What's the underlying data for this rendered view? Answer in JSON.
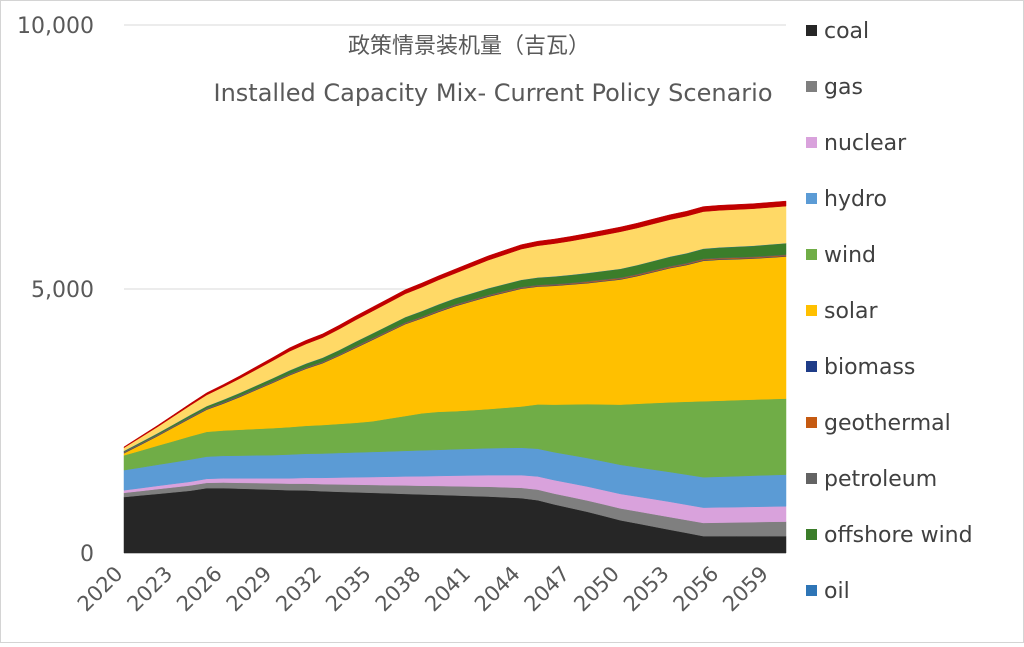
{
  "chart_data": {
    "type": "area",
    "title": "政策情景装机量（吉瓦）",
    "subtitle": "Installed Capacity Mix- Current Policy Scenario",
    "xlabel": "",
    "ylabel": "",
    "ylim": [
      0,
      10000
    ],
    "yticks": [
      "0",
      "5,000",
      "10,000"
    ],
    "grid": true,
    "legend_placement": "right",
    "x": [
      2020,
      2021,
      2022,
      2023,
      2024,
      2025,
      2026,
      2027,
      2028,
      2029,
      2030,
      2031,
      2032,
      2033,
      2034,
      2035,
      2036,
      2037,
      2038,
      2039,
      2040,
      2041,
      2042,
      2043,
      2044,
      2045,
      2046,
      2047,
      2048,
      2049,
      2050,
      2051,
      2052,
      2053,
      2054,
      2055,
      2056,
      2057,
      2058,
      2059,
      2060
    ],
    "xtick_labels": [
      "2020",
      "2023",
      "2026",
      "2029",
      "2032",
      "2035",
      "2038",
      "2041",
      "2044",
      "2047",
      "2050",
      "2053",
      "2056",
      "2059"
    ],
    "series": [
      {
        "name": "coal",
        "color": "#262626",
        "values": [
          1060,
          1090,
          1120,
          1150,
          1180,
          1230,
          1230,
          1220,
          1210,
          1200,
          1190,
          1185,
          1170,
          1160,
          1150,
          1140,
          1130,
          1120,
          1110,
          1100,
          1090,
          1080,
          1070,
          1055,
          1040,
          1000,
          920,
          850,
          780,
          700,
          620,
          560,
          500,
          440,
          380,
          320,
          320,
          320,
          320,
          320,
          320
        ]
      },
      {
        "name": "gas",
        "color": "#7f7f7f",
        "values": [
          80,
          85,
          90,
          95,
          100,
          100,
          105,
          110,
          115,
          120,
          125,
          130,
          135,
          140,
          145,
          150,
          155,
          160,
          165,
          170,
          175,
          180,
          185,
          190,
          195,
          200,
          205,
          210,
          215,
          220,
          225,
          230,
          235,
          240,
          245,
          250,
          255,
          260,
          265,
          270,
          275
        ]
      },
      {
        "name": "nuclear",
        "color": "#d9a2dc",
        "values": [
          50,
          55,
          60,
          65,
          70,
          75,
          80,
          85,
          90,
          95,
          100,
          110,
          120,
          130,
          140,
          150,
          160,
          170,
          180,
          190,
          200,
          210,
          220,
          230,
          240,
          250,
          255,
          260,
          265,
          270,
          275,
          280,
          285,
          290,
          290,
          290,
          290,
          290,
          290,
          290,
          290
        ]
      },
      {
        "name": "hydro",
        "color": "#5b9bd5",
        "values": [
          380,
          390,
          400,
          410,
          420,
          420,
          425,
          430,
          435,
          440,
          450,
          455,
          460,
          465,
          470,
          475,
          480,
          485,
          490,
          495,
          500,
          505,
          510,
          515,
          520,
          525,
          530,
          535,
          540,
          545,
          550,
          555,
          560,
          565,
          570,
          575,
          580,
          585,
          590,
          595,
          600
        ]
      },
      {
        "name": "wind",
        "color": "#70ad47",
        "values": [
          280,
          320,
          360,
          400,
          440,
          470,
          480,
          490,
          500,
          510,
          520,
          530,
          540,
          550,
          560,
          580,
          620,
          660,
          700,
          720,
          720,
          730,
          740,
          760,
          780,
          840,
          900,
          960,
          1020,
          1080,
          1140,
          1200,
          1260,
          1320,
          1380,
          1440,
          1440,
          1440,
          1440,
          1440,
          1440
        ]
      },
      {
        "name": "solar",
        "color": "#ffc000",
        "values": [
          40,
          110,
          180,
          260,
          340,
          420,
          510,
          620,
          740,
          860,
          980,
          1080,
          1170,
          1290,
          1420,
          1540,
          1640,
          1740,
          1800,
          1890,
          1990,
          2060,
          2130,
          2180,
          2230,
          2230,
          2250,
          2270,
          2290,
          2330,
          2370,
          2420,
          2480,
          2540,
          2590,
          2660,
          2670,
          2670,
          2670,
          2680,
          2690
        ]
      },
      {
        "name": "biomass",
        "color": "#1f3c88",
        "values": [
          10,
          10,
          10,
          10,
          10,
          10,
          10,
          10,
          10,
          10,
          10,
          10,
          10,
          10,
          10,
          10,
          10,
          10,
          10,
          10,
          10,
          10,
          10,
          10,
          10,
          10,
          10,
          10,
          10,
          10,
          10,
          10,
          10,
          10,
          10,
          10,
          10,
          10,
          10,
          10,
          10
        ]
      },
      {
        "name": "geothermal",
        "color": "#c55a11",
        "values": [
          5,
          5,
          5,
          5,
          5,
          5,
          5,
          5,
          5,
          5,
          5,
          5,
          5,
          5,
          10,
          10,
          10,
          10,
          10,
          10,
          10,
          10,
          10,
          10,
          10,
          10,
          10,
          10,
          15,
          15,
          15,
          15,
          15,
          15,
          15,
          15,
          15,
          15,
          15,
          15,
          15
        ]
      },
      {
        "name": "petroleum",
        "color": "#636363",
        "values": [
          15,
          15,
          15,
          15,
          15,
          15,
          15,
          15,
          15,
          15,
          15,
          15,
          15,
          15,
          15,
          15,
          15,
          15,
          15,
          15,
          15,
          15,
          15,
          15,
          15,
          15,
          15,
          15,
          15,
          15,
          15,
          15,
          15,
          15,
          15,
          15,
          15,
          15,
          15,
          15,
          15
        ]
      },
      {
        "name": "offshore wind",
        "color": "#3b7d2a",
        "values": [
          10,
          15,
          20,
          25,
          30,
          35,
          40,
          45,
          50,
          55,
          60,
          65,
          70,
          75,
          80,
          85,
          90,
          95,
          100,
          105,
          110,
          115,
          120,
          125,
          130,
          135,
          140,
          145,
          150,
          155,
          160,
          165,
          170,
          175,
          180,
          185,
          190,
          195,
          200,
          205,
          210
        ]
      },
      {
        "name": "oil",
        "color": "#2e75b6",
        "values": [
          5,
          5,
          5,
          5,
          5,
          5,
          5,
          5,
          5,
          5,
          5,
          5,
          5,
          5,
          5,
          5,
          5,
          5,
          5,
          5,
          5,
          5,
          5,
          5,
          5,
          5,
          5,
          5,
          5,
          5,
          5,
          5,
          5,
          5,
          5,
          5,
          5,
          5,
          5,
          5,
          5
        ]
      },
      {
        "name": "",
        "color": "#ffd966",
        "values": [
          60,
          90,
          120,
          150,
          180,
          210,
          240,
          270,
          300,
          330,
          360,
          370,
          380,
          395,
          410,
          420,
          430,
          440,
          450,
          460,
          470,
          500,
          530,
          555,
          580,
          600,
          620,
          640,
          660,
          680,
          700,
          700,
          700,
          700,
          700,
          700,
          700,
          700,
          700,
          700,
          700
        ]
      },
      {
        "name": "",
        "color": "#c00000",
        "values": [
          15,
          20,
          25,
          30,
          35,
          40,
          45,
          50,
          55,
          60,
          65,
          68,
          70,
          72,
          74,
          75,
          76,
          77,
          78,
          79,
          80,
          81,
          82,
          83,
          84,
          85,
          86,
          87,
          88,
          89,
          90,
          91,
          92,
          93,
          94,
          95,
          95,
          95,
          95,
          95,
          95
        ]
      }
    ]
  }
}
